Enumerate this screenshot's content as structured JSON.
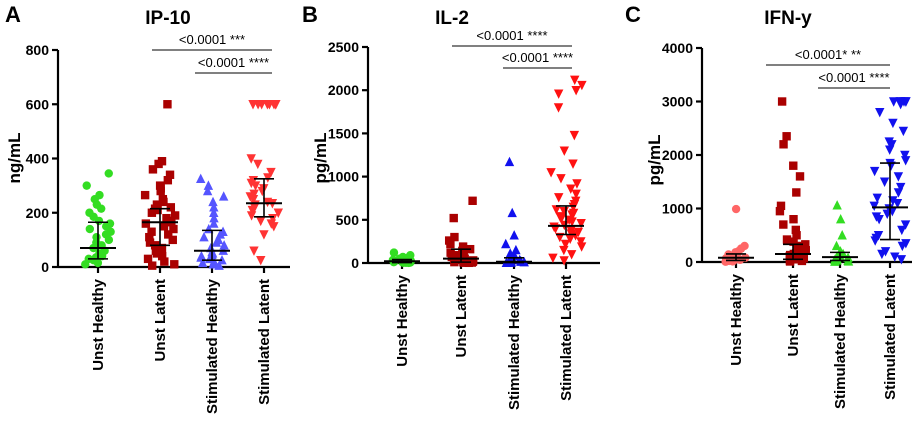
{
  "chart_data": [
    {
      "panel": "A",
      "type": "scatter",
      "title": "IP-10",
      "ylabel": "ng/mL",
      "ylim": [
        0,
        800
      ],
      "yticks": [
        0,
        200,
        400,
        600,
        800
      ],
      "categories": [
        "Unst Healthy",
        "Unst Latent",
        "Stimulated Healthy",
        "Stimulated Latent"
      ],
      "markers": [
        "circle",
        "square",
        "triangle-up",
        "triangle-down"
      ],
      "colors": [
        "#33dd22",
        "#aa0000",
        "#5555ff",
        "#ff3333"
      ],
      "summary": [
        {
          "median": 70,
          "q1": 30,
          "q3": 165
        },
        {
          "median": 165,
          "q1": 80,
          "q3": 215
        },
        {
          "median": 60,
          "q1": 25,
          "q3": 135
        },
        {
          "median": 235,
          "q1": 185,
          "q3": 325
        }
      ],
      "series": [
        {
          "name": "Unst Healthy",
          "values": [
            345,
            300,
            265,
            250,
            230,
            215,
            200,
            185,
            170,
            160,
            150,
            140,
            130,
            120,
            110,
            100,
            90,
            80,
            70,
            60,
            50,
            40,
            35,
            30,
            25,
            15,
            10
          ]
        },
        {
          "name": "Unst Latent",
          "values": [
            600,
            390,
            380,
            360,
            340,
            320,
            300,
            290,
            280,
            265,
            250,
            240,
            230,
            220,
            215,
            210,
            200,
            190,
            180,
            170,
            165,
            160,
            150,
            140,
            130,
            120,
            110,
            100,
            90,
            80,
            70,
            60,
            50,
            40,
            30,
            20,
            10,
            5
          ]
        },
        {
          "name": "Stimulated Healthy",
          "values": [
            325,
            300,
            280,
            260,
            240,
            220,
            200,
            180,
            160,
            140,
            130,
            120,
            110,
            100,
            90,
            80,
            70,
            60,
            55,
            50,
            45,
            40,
            35,
            30,
            25,
            20,
            15,
            10,
            5
          ]
        },
        {
          "name": "Stimulated Latent",
          "values": [
            600,
            600,
            600,
            600,
            600,
            600,
            600,
            600,
            400,
            380,
            350,
            330,
            320,
            310,
            300,
            290,
            280,
            270,
            260,
            250,
            240,
            235,
            230,
            220,
            210,
            200,
            190,
            180,
            170,
            160,
            150,
            120,
            60,
            25
          ]
        }
      ],
      "comparisons": [
        {
          "from": 1,
          "to": 3,
          "label": "<0.0001 ***"
        },
        {
          "from": 2,
          "to": 3,
          "label": "<0.0001 ****"
        }
      ]
    },
    {
      "panel": "B",
      "type": "scatter",
      "title": "IL-2",
      "ylabel": "pg/mL",
      "ylim": [
        0,
        2500
      ],
      "yticks": [
        0,
        500,
        1000,
        1500,
        2000,
        2500
      ],
      "categories": [
        "Unst Healthy",
        "Unst Latent",
        "Stimulated Healthy",
        "Stimulated Latent"
      ],
      "markers": [
        "circle",
        "square",
        "triangle-up",
        "triangle-down"
      ],
      "colors": [
        "#33dd22",
        "#aa0000",
        "#1111ee",
        "#ff1111"
      ],
      "summary": [
        {
          "median": 20,
          "q1": 5,
          "q3": 40
        },
        {
          "median": 50,
          "q1": 10,
          "q3": 160
        },
        {
          "median": 15,
          "q1": 5,
          "q3": 60
        },
        {
          "median": 430,
          "q1": 330,
          "q3": 660
        }
      ],
      "series": [
        {
          "name": "Unst Healthy",
          "values": [
            120,
            90,
            70,
            60,
            50,
            40,
            35,
            30,
            25,
            20,
            15,
            10,
            8,
            5,
            3,
            2,
            1
          ]
        },
        {
          "name": "Unst Latent",
          "values": [
            720,
            520,
            300,
            260,
            220,
            190,
            160,
            140,
            120,
            100,
            90,
            80,
            70,
            60,
            50,
            40,
            30,
            25,
            20,
            15,
            10,
            8,
            5,
            3,
            2
          ]
        },
        {
          "name": "Stimulated Healthy",
          "values": [
            1170,
            580,
            320,
            220,
            150,
            110,
            80,
            60,
            45,
            35,
            25,
            20,
            15,
            10,
            8,
            5,
            3,
            2
          ]
        },
        {
          "name": "Stimulated Latent",
          "values": [
            2120,
            2060,
            2000,
            1960,
            1800,
            1480,
            1300,
            1150,
            1050,
            980,
            920,
            860,
            800,
            760,
            720,
            680,
            650,
            620,
            600,
            580,
            560,
            540,
            520,
            500,
            480,
            460,
            440,
            420,
            400,
            380,
            360,
            340,
            320,
            300,
            280,
            250,
            220,
            190,
            150,
            100,
            60,
            30
          ]
        }
      ],
      "comparisons": [
        {
          "from": 1,
          "to": 3,
          "label": "<0.0001 ****"
        },
        {
          "from": 2,
          "to": 3,
          "label": "<0.0001 ****"
        }
      ]
    },
    {
      "panel": "C",
      "type": "scatter",
      "title": "IFN-y",
      "ylabel": "pg/mL",
      "ylim": [
        0,
        4000
      ],
      "yticks": [
        0,
        1000,
        2000,
        3000,
        4000
      ],
      "categories": [
        "Unst Healthy",
        "Unst Latent",
        "Stimulated Healthy",
        "Stimulated Latent"
      ],
      "markers": [
        "circle",
        "square",
        "triangle-up",
        "triangle-down"
      ],
      "colors": [
        "#ff6666",
        "#aa0000",
        "#33dd22",
        "#1111ee"
      ],
      "summary": [
        {
          "median": 80,
          "q1": 30,
          "q3": 150
        },
        {
          "median": 150,
          "q1": 50,
          "q3": 330
        },
        {
          "median": 90,
          "q1": 30,
          "q3": 180
        },
        {
          "median": 1020,
          "q1": 420,
          "q3": 1850
        }
      ],
      "series": [
        {
          "name": "Unst Healthy",
          "values": [
            990,
            300,
            250,
            200,
            180,
            160,
            140,
            120,
            100,
            90,
            80,
            70,
            60,
            50,
            40,
            30,
            20,
            10,
            5
          ]
        },
        {
          "name": "Unst Latent",
          "values": [
            3000,
            2350,
            2200,
            1800,
            1600,
            1300,
            1050,
            950,
            800,
            700,
            600,
            500,
            420,
            380,
            330,
            300,
            260,
            220,
            200,
            180,
            160,
            150,
            130,
            110,
            100,
            90,
            70,
            50,
            30,
            20,
            10
          ]
        },
        {
          "name": "Stimulated Healthy",
          "values": [
            1060,
            800,
            500,
            300,
            200,
            150,
            120,
            100,
            80,
            60,
            40,
            30,
            20,
            10,
            5
          ]
        },
        {
          "name": "Stimulated Latent",
          "values": [
            3000,
            3000,
            3000,
            3000,
            3000,
            3000,
            2950,
            2800,
            2600,
            2450,
            2250,
            2200,
            2100,
            2000,
            1900,
            1850,
            1800,
            1700,
            1600,
            1500,
            1400,
            1300,
            1200,
            1150,
            1100,
            1050,
            1000,
            950,
            900,
            850,
            800,
            700,
            600,
            500,
            450,
            400,
            350,
            300,
            200,
            150,
            100,
            50
          ]
        }
      ],
      "comparisons": [
        {
          "from": 1,
          "to": 3,
          "label": "<0.0001* **"
        },
        {
          "from": 2,
          "to": 3,
          "label": "<0.0001 ****"
        }
      ]
    }
  ]
}
